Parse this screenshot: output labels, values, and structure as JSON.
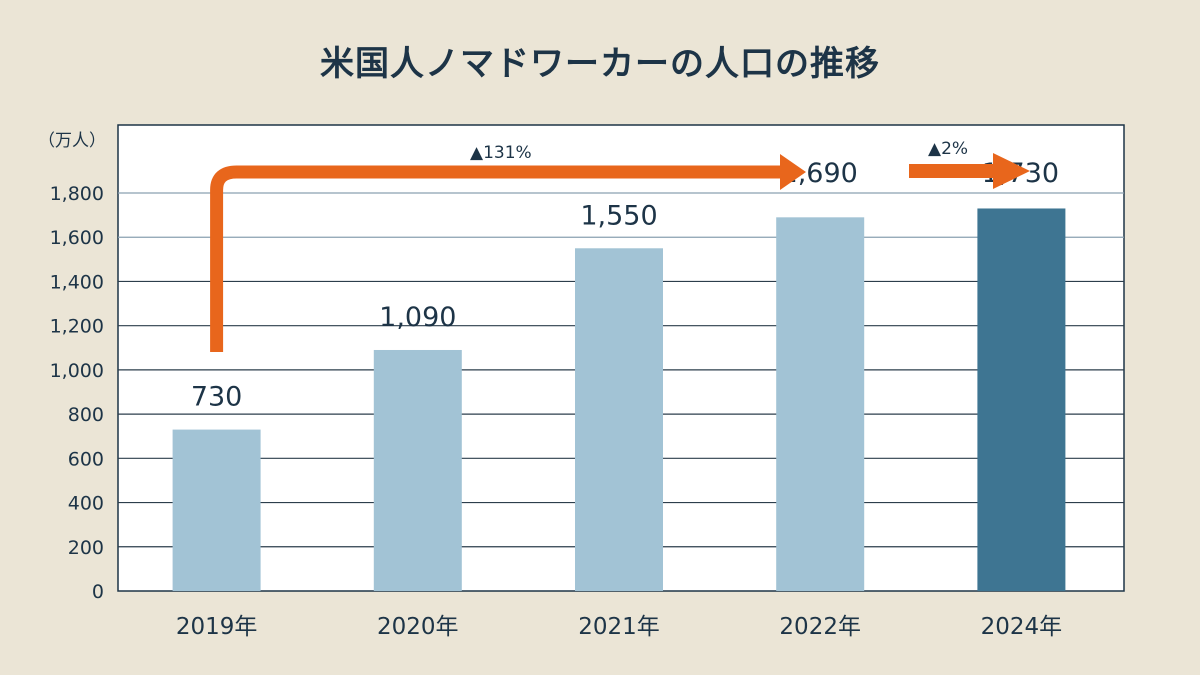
{
  "chart_data": {
    "type": "bar",
    "title": "米国人ノマドワーカーの人口の推移",
    "ylabel": "（万人）",
    "xlabel": "",
    "categories": [
      "2019年",
      "2020年",
      "2021年",
      "2022年",
      "2024年"
    ],
    "values": [
      730,
      1090,
      1550,
      1690,
      1730
    ],
    "value_labels": [
      "730",
      "1,090",
      "1,550",
      "1,690",
      "1,730"
    ],
    "ylim": [
      0,
      1800
    ],
    "yticks": [
      "0",
      "200",
      "400",
      "600",
      "800",
      "1,000",
      "1,200",
      "1,400",
      "1,600",
      "1,800"
    ],
    "grid": true,
    "annotations": [
      {
        "text": "▲131%",
        "from": "2019年",
        "to": "2022年"
      },
      {
        "text": "▲2%",
        "from": "2022年",
        "to": "2024年"
      }
    ],
    "colors": {
      "bar": "#a2c3d5",
      "highlight_bar": "#3e7592",
      "arrow": "#e8661c",
      "text": "#1d3447",
      "background": "#ebe5d6"
    }
  }
}
